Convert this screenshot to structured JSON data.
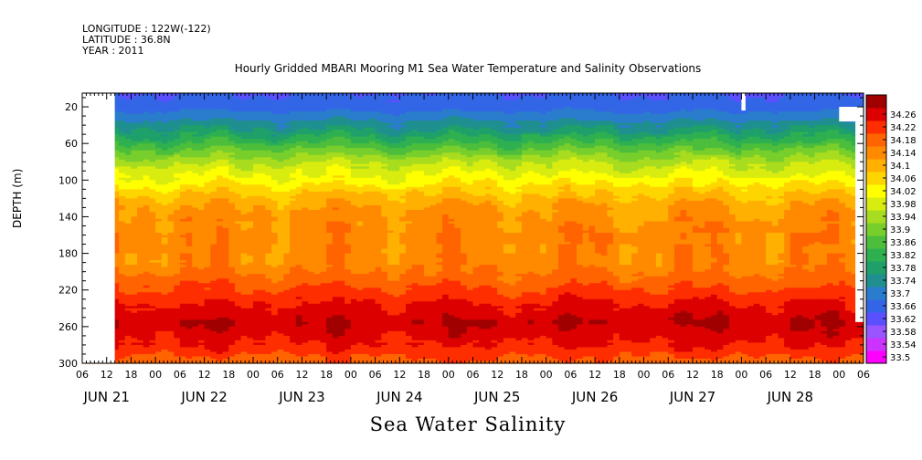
{
  "header": {
    "longitude": "LONGITUDE : 122W(-122)",
    "latitude": "LATITUDE : 36.8N",
    "year": "YEAR : 2011"
  },
  "chart_data": {
    "type": "heatmap",
    "title": "Hourly Gridded MBARI Mooring M1 Sea Water Temperature and Salinity Observations",
    "caption": "Sea Water Salinity",
    "ylabel": "DEPTH (m)",
    "y_inverted": true,
    "ylim": [
      300,
      5
    ],
    "y_ticks": [
      20,
      60,
      100,
      140,
      180,
      220,
      260,
      300
    ],
    "hour_ticks": [
      "06",
      "12",
      "18",
      "00",
      "06",
      "12",
      "18",
      "00",
      "06",
      "12",
      "18",
      "00",
      "06",
      "12",
      "18",
      "00",
      "06",
      "12",
      "18",
      "00",
      "06",
      "12",
      "18",
      "00",
      "06",
      "12",
      "18",
      "00",
      "06",
      "12",
      "18",
      "00",
      "06"
    ],
    "date_labels": [
      "JUN 21",
      "JUN 22",
      "JUN 23",
      "JUN 24",
      "JUN 25",
      "JUN 26",
      "JUN 27",
      "JUN 28"
    ],
    "xlim_hours_from_jun21_00": [
      6,
      198
    ],
    "colorbar": {
      "levels": [
        33.5,
        33.54,
        33.58,
        33.62,
        33.66,
        33.7,
        33.74,
        33.78,
        33.82,
        33.86,
        33.9,
        33.94,
        33.98,
        34.02,
        34.06,
        34.1,
        34.14,
        34.18,
        34.22,
        34.26
      ],
      "colors": [
        "#ff00ff",
        "#cc33ff",
        "#9955ff",
        "#5a50ff",
        "#3366e6",
        "#2a7ccc",
        "#1f8f8f",
        "#1fa06a",
        "#2fb050",
        "#4cbe3c",
        "#78cf2c",
        "#a8dc1e",
        "#d8ec10",
        "#ffff00",
        "#ffd500",
        "#ffb000",
        "#ff8a00",
        "#ff6400",
        "#ff2e00",
        "#dd0000",
        "#a00000"
      ]
    },
    "profile": [
      {
        "depth": 5,
        "value": 33.62
      },
      {
        "depth": 20,
        "value": 33.64
      },
      {
        "depth": 40,
        "value": 33.72
      },
      {
        "depth": 60,
        "value": 33.82
      },
      {
        "depth": 80,
        "value": 33.93
      },
      {
        "depth": 100,
        "value": 34.0
      },
      {
        "depth": 115,
        "value": 34.06
      },
      {
        "depth": 130,
        "value": 34.1
      },
      {
        "depth": 160,
        "value": 34.13
      },
      {
        "depth": 190,
        "value": 34.12
      },
      {
        "depth": 210,
        "value": 34.16
      },
      {
        "depth": 230,
        "value": 34.21
      },
      {
        "depth": 255,
        "value": 34.26
      },
      {
        "depth": 280,
        "value": 34.22
      },
      {
        "depth": 300,
        "value": 34.16
      }
    ],
    "missing_data": [
      {
        "x": [
          6,
          14
        ],
        "y": [
          5,
          300
        ]
      },
      {
        "x": [
          168,
          169
        ],
        "y": [
          5,
          24
        ]
      },
      {
        "x": [
          192,
          198
        ],
        "y": [
          20,
          36
        ]
      },
      {
        "x": [
          196,
          198
        ],
        "y": [
          36,
          255
        ]
      }
    ]
  }
}
